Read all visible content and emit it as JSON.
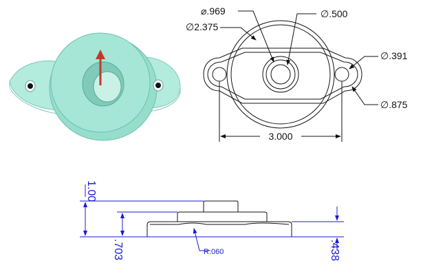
{
  "top_view": {
    "dims": {
      "bore_diameter": "⌀.969",
      "body_diameter": "∅2.375",
      "hole_diameter": "∅.500",
      "bolt_hole_diameter": "∅.391",
      "ear_diameter": "∅.875",
      "hole_spacing": "3.000"
    }
  },
  "side_view": {
    "dims": {
      "overall_height": "1.00",
      "base_height": ".703",
      "flange_thickness": ".438",
      "fillet_radius": "R.060"
    }
  },
  "colors": {
    "model_fill": "#9fe3d3",
    "model_edge": "#6cbfae",
    "arrow": "#c0392b",
    "dim_blue": "#1a1ad6",
    "line_black": "#111111"
  }
}
